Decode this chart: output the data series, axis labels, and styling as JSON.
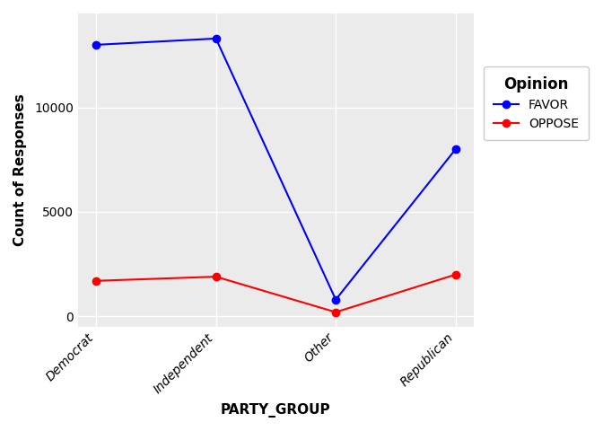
{
  "categories": [
    "Democrat",
    "Independent",
    "Other",
    "Republican"
  ],
  "favor_values": [
    13000,
    13300,
    800,
    8000
  ],
  "oppose_values": [
    1700,
    1900,
    200,
    2000
  ],
  "favor_color": "#0000FF",
  "oppose_color": "#FF0000",
  "xlabel": "PARTY_GROUP",
  "ylabel": "Count of Responses",
  "legend_title": "Opinion",
  "legend_labels": [
    "FAVOR",
    "OPPOSE"
  ],
  "ylim": [
    -500,
    14500
  ],
  "yticks": [
    0,
    5000,
    10000
  ],
  "plot_background_color": "#ebebeb",
  "fig_background_color": "#ffffff",
  "grid_color": "#ffffff",
  "marker": "o",
  "marker_size": 6,
  "line_width": 1.5,
  "tick_labelsize": 10,
  "axis_labelsize": 11
}
